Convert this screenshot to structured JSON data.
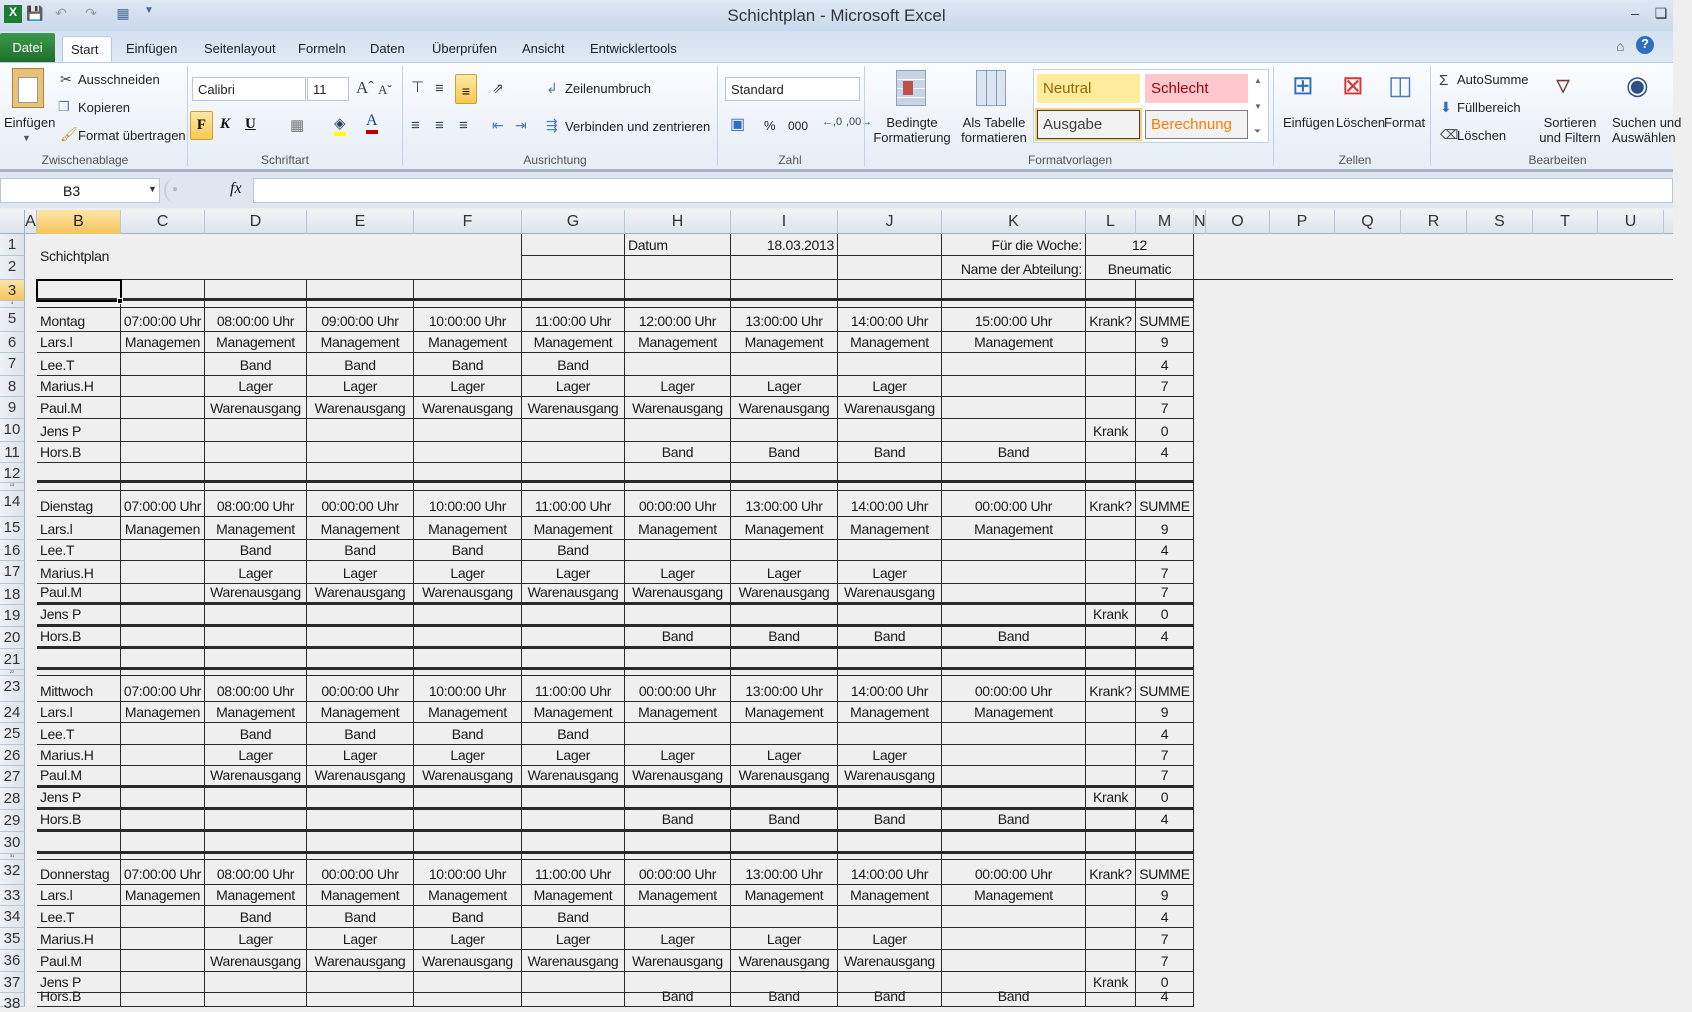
{
  "window": {
    "title": "Schichtplan - Microsoft Excel"
  },
  "ribbon_tabs": [
    "Datei",
    "Start",
    "Einfügen",
    "Seitenlayout",
    "Formeln",
    "Daten",
    "Überprüfen",
    "Ansicht",
    "Entwicklertools"
  ],
  "active_tab": "Start",
  "ribbon": {
    "clipboard": {
      "paste": "Einfügen",
      "cut": "Ausschneiden",
      "copy": "Kopieren",
      "format_painter": "Format übertragen",
      "label": "Zwischenablage"
    },
    "font": {
      "name": "Calibri",
      "size": "11",
      "bold": "F",
      "italic": "K",
      "underline": "U",
      "label": "Schriftart"
    },
    "alignment": {
      "wrap": "Zeilenumbruch",
      "merge": "Verbinden und zentrieren",
      "label": "Ausrichtung"
    },
    "number": {
      "format": "Standard",
      "percent": "%",
      "thousands": "000",
      "label": "Zahl"
    },
    "styles": {
      "conditional": [
        "Bedingte",
        "Formatierung"
      ],
      "as_table": [
        "Als Tabelle",
        "formatieren"
      ],
      "gallery": [
        {
          "name": "Neutral",
          "bg": "#ffeb9c",
          "fg": "#9c6500",
          "border": "#ffeb9c"
        },
        {
          "name": "Schlecht",
          "bg": "#ffc7ce",
          "fg": "#9c0006",
          "border": "#ffc7ce"
        },
        {
          "name": "Ausgabe",
          "bg": "#f2f2f2",
          "fg": "#3f3f3f",
          "border": "#3f3f3f"
        },
        {
          "name": "Berechnung",
          "bg": "#f2f2f2",
          "fg": "#fa7d00",
          "border": "#7f7f7f"
        }
      ],
      "label": "Formatvorlagen"
    },
    "cells": {
      "insert": "Einfügen",
      "delete": "Löschen",
      "format": "Format",
      "label": "Zellen"
    },
    "editing": {
      "autosum": "AutoSumme",
      "fill": "Füllbereich",
      "clear": "Löschen",
      "sort": [
        "Sortieren",
        "und Filtern"
      ],
      "find": [
        "Suchen und",
        "Auswählen"
      ],
      "label": "Bearbeiten"
    }
  },
  "formula_bar": {
    "name_box": "B3",
    "fx": "fx",
    "formula": ""
  },
  "sheet": {
    "columns": [
      "A",
      "B",
      "C",
      "D",
      "E",
      "F",
      "G",
      "H",
      "I",
      "J",
      "K",
      "L",
      "M",
      "N",
      "O",
      "P",
      "Q",
      "R",
      "S",
      "T",
      "U"
    ],
    "selected_cell": "B3",
    "rows": [
      {
        "n": "1",
        "c": [
          "Schichtplan",
          "",
          "",
          "",
          "",
          "",
          "Datum",
          "18.03.2013",
          "",
          "Für die Woche:",
          "12",
          ""
        ]
      },
      {
        "n": "2",
        "c": [
          "",
          "",
          "",
          "",
          "",
          "",
          "",
          "",
          "",
          "Name der Abteilung:",
          "Bneumatic",
          ""
        ]
      },
      {
        "n": "3",
        "c": []
      },
      {
        "n": "4",
        "c": []
      },
      {
        "n": "5",
        "c": [
          "Montag",
          "07:00:00 Uhr",
          "08:00:00 Uhr",
          "09:00:00 Uhr",
          "10:00:00 Uhr",
          "11:00:00 Uhr",
          "12:00:00 Uhr",
          "13:00:00 Uhr",
          "14:00:00 Uhr",
          "15:00:00 Uhr",
          "Krank?",
          "SUMME"
        ]
      },
      {
        "n": "6",
        "c": [
          "Lars.l",
          "Managemen",
          "Management",
          "Management",
          "Management",
          "Management",
          "Management",
          "Management",
          "Management",
          "Management",
          "",
          "9"
        ]
      },
      {
        "n": "7",
        "c": [
          "Lee.T",
          "",
          "Band",
          "Band",
          "Band",
          "Band",
          "",
          "",
          "",
          "",
          "",
          "4"
        ]
      },
      {
        "n": "8",
        "c": [
          "Marius.H",
          "",
          "Lager",
          "Lager",
          "Lager",
          "Lager",
          "Lager",
          "Lager",
          "Lager",
          "",
          "",
          "7"
        ]
      },
      {
        "n": "9",
        "c": [
          "Paul.M",
          "",
          "Warenausgang",
          "Warenausgang",
          "Warenausgang",
          "Warenausgang",
          "Warenausgang",
          "Warenausgang",
          "Warenausgang",
          "",
          "",
          "7"
        ]
      },
      {
        "n": "10",
        "c": [
          "Jens P",
          "",
          "",
          "",
          "",
          "",
          "",
          "",
          "",
          "",
          "Krank",
          "0"
        ]
      },
      {
        "n": "11",
        "c": [
          "Hors.B",
          "",
          "",
          "",
          "",
          "",
          "Band",
          "Band",
          "Band",
          "Band",
          "",
          "4"
        ]
      },
      {
        "n": "12",
        "c": []
      },
      {
        "n": "13",
        "c": []
      },
      {
        "n": "14",
        "c": [
          "Dienstag",
          "07:00:00 Uhr",
          "08:00:00 Uhr",
          "00:00:00 Uhr",
          "10:00:00 Uhr",
          "11:00:00 Uhr",
          "00:00:00 Uhr",
          "13:00:00 Uhr",
          "14:00:00 Uhr",
          "00:00:00 Uhr",
          "Krank?",
          "SUMME"
        ]
      },
      {
        "n": "15",
        "c": [
          "Lars.l",
          "Managemen",
          "Management",
          "Management",
          "Management",
          "Management",
          "Management",
          "Management",
          "Management",
          "Management",
          "",
          "9"
        ]
      },
      {
        "n": "16",
        "c": [
          "Lee.T",
          "",
          "Band",
          "Band",
          "Band",
          "Band",
          "",
          "",
          "",
          "",
          "",
          "4"
        ]
      },
      {
        "n": "17",
        "c": [
          "Marius.H",
          "",
          "Lager",
          "Lager",
          "Lager",
          "Lager",
          "Lager",
          "Lager",
          "Lager",
          "",
          "",
          "7"
        ]
      },
      {
        "n": "18",
        "c": [
          "Paul.M",
          "",
          "Warenausgang",
          "Warenausgang",
          "Warenausgang",
          "Warenausgang",
          "Warenausgang",
          "Warenausgang",
          "Warenausgang",
          "",
          "",
          "7"
        ]
      },
      {
        "n": "19",
        "c": [
          "Jens P",
          "",
          "",
          "",
          "",
          "",
          "",
          "",
          "",
          "",
          "Krank",
          "0"
        ]
      },
      {
        "n": "20",
        "c": [
          "Hors.B",
          "",
          "",
          "",
          "",
          "",
          "Band",
          "Band",
          "Band",
          "Band",
          "",
          "4"
        ]
      },
      {
        "n": "21",
        "c": []
      },
      {
        "n": "22",
        "c": []
      },
      {
        "n": "23",
        "c": [
          "Mittwoch",
          "07:00:00 Uhr",
          "08:00:00 Uhr",
          "00:00:00 Uhr",
          "10:00:00 Uhr",
          "11:00:00 Uhr",
          "00:00:00 Uhr",
          "13:00:00 Uhr",
          "14:00:00 Uhr",
          "00:00:00 Uhr",
          "Krank?",
          "SUMME"
        ]
      },
      {
        "n": "24",
        "c": [
          "Lars.l",
          "Managemen",
          "Management",
          "Management",
          "Management",
          "Management",
          "Management",
          "Management",
          "Management",
          "Management",
          "",
          "9"
        ]
      },
      {
        "n": "25",
        "c": [
          "Lee.T",
          "",
          "Band",
          "Band",
          "Band",
          "Band",
          "",
          "",
          "",
          "",
          "",
          "4"
        ]
      },
      {
        "n": "26",
        "c": [
          "Marius.H",
          "",
          "Lager",
          "Lager",
          "Lager",
          "Lager",
          "Lager",
          "Lager",
          "Lager",
          "",
          "",
          "7"
        ]
      },
      {
        "n": "27",
        "c": [
          "Paul.M",
          "",
          "Warenausgang",
          "Warenausgang",
          "Warenausgang",
          "Warenausgang",
          "Warenausgang",
          "Warenausgang",
          "Warenausgang",
          "",
          "",
          "7"
        ]
      },
      {
        "n": "28",
        "c": [
          "Jens P",
          "",
          "",
          "",
          "",
          "",
          "",
          "",
          "",
          "",
          "Krank",
          "0"
        ]
      },
      {
        "n": "29",
        "c": [
          "Hors.B",
          "",
          "",
          "",
          "",
          "",
          "Band",
          "Band",
          "Band",
          "Band",
          "",
          "4"
        ]
      },
      {
        "n": "30",
        "c": []
      },
      {
        "n": "31",
        "c": []
      },
      {
        "n": "32",
        "c": [
          "Donnerstag",
          "07:00:00 Uhr",
          "08:00:00 Uhr",
          "00:00:00 Uhr",
          "10:00:00 Uhr",
          "11:00:00 Uhr",
          "00:00:00 Uhr",
          "13:00:00 Uhr",
          "14:00:00 Uhr",
          "00:00:00 Uhr",
          "Krank?",
          "SUMME"
        ]
      },
      {
        "n": "33",
        "c": [
          "Lars.l",
          "Managemen",
          "Management",
          "Management",
          "Management",
          "Management",
          "Management",
          "Management",
          "Management",
          "Management",
          "",
          "9"
        ]
      },
      {
        "n": "34",
        "c": [
          "Lee.T",
          "",
          "Band",
          "Band",
          "Band",
          "Band",
          "",
          "",
          "",
          "",
          "",
          "4"
        ]
      },
      {
        "n": "35",
        "c": [
          "Marius.H",
          "",
          "Lager",
          "Lager",
          "Lager",
          "Lager",
          "Lager",
          "Lager",
          "Lager",
          "",
          "",
          "7"
        ]
      },
      {
        "n": "36",
        "c": [
          "Paul.M",
          "",
          "Warenausgang",
          "Warenausgang",
          "Warenausgang",
          "Warenausgang",
          "Warenausgang",
          "Warenausgang",
          "Warenausgang",
          "",
          "",
          "7"
        ]
      },
      {
        "n": "37",
        "c": [
          "Jens P",
          "",
          "",
          "",
          "",
          "",
          "",
          "",
          "",
          "",
          "Krank",
          "0"
        ]
      },
      {
        "n": "38",
        "c": [
          "Hors.B",
          "",
          "",
          "",
          "",
          "",
          "Band",
          "Band",
          "Band",
          "Band",
          "",
          "4"
        ]
      }
    ]
  }
}
